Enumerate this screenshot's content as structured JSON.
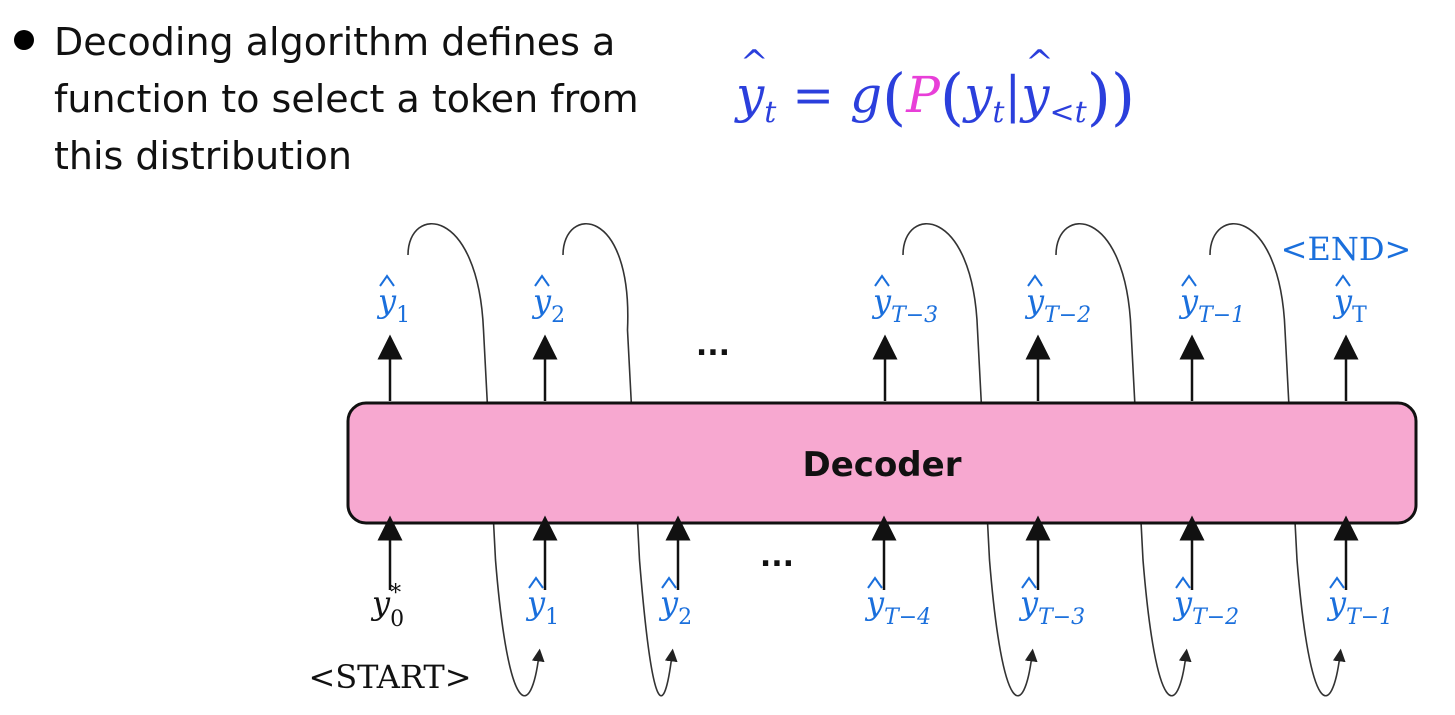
{
  "bullet": {
    "text": "Decoding algorithm defines a function to select a token from this distribution"
  },
  "formula": {
    "lhs": "y",
    "lhs_sub": "t",
    "eq": " = ",
    "g": "g",
    "P": "P",
    "y": "y",
    "y_sub": "t",
    "bar": "|",
    "yhat": "y",
    "yhat_sub": "<t"
  },
  "diagram": {
    "decoder_label": "Decoder",
    "end_token": "<END>",
    "start_token": "<START>",
    "ellipsis": "...",
    "top_outputs": [
      {
        "base": "y",
        "sub": "1"
      },
      {
        "base": "y",
        "sub": "2"
      },
      {
        "base": "y",
        "sub": "T−3"
      },
      {
        "base": "y",
        "sub": "T−2"
      },
      {
        "base": "y",
        "sub": "T−1"
      },
      {
        "base": "y",
        "sub": "T"
      }
    ],
    "bottom_inputs": [
      {
        "base": "y",
        "sub": "0",
        "sup": "*",
        "hat": false
      },
      {
        "base": "y",
        "sub": "1",
        "hat": true
      },
      {
        "base": "y",
        "sub": "2",
        "hat": true
      },
      {
        "base": "y",
        "sub": "T−4",
        "hat": true
      },
      {
        "base": "y",
        "sub": "T−3",
        "hat": true
      },
      {
        "base": "y",
        "sub": "T−2",
        "hat": true
      },
      {
        "base": "y",
        "sub": "T−1",
        "hat": true
      }
    ],
    "colors": {
      "decoder_fill": "#f7a8d0",
      "token_blue": "#1a6fdc",
      "formula_blue": "#2b3fdc",
      "formula_pink": "#e83fd8"
    }
  }
}
